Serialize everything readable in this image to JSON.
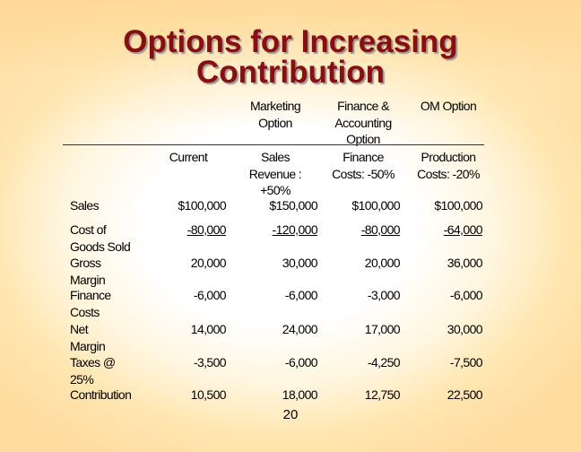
{
  "slide": {
    "title_line1": "Options for Increasing",
    "title_line2": "Contribution",
    "page_number": "20"
  },
  "table": {
    "top_headers": {
      "marketing": [
        "Marketing",
        "Option"
      ],
      "finance": [
        "Finance &",
        "Accounting",
        "Option"
      ],
      "om": [
        "OM Option"
      ]
    },
    "sub_headers": {
      "current": [
        "Current"
      ],
      "marketing": [
        "Sales",
        "Revenue :",
        "+50%"
      ],
      "finance": [
        "Finance",
        "Costs: -50%"
      ],
      "om": [
        "Production",
        "Costs: -20%"
      ]
    },
    "rows": [
      {
        "label": [
          "Sales"
        ],
        "current": "$100,000",
        "marketing": "$150,000",
        "finance": "$100,000",
        "om": "$100,000"
      },
      {
        "label": [
          "Cost of",
          "Goods Sold"
        ],
        "current": "-80,000",
        "marketing": "-120,000",
        "finance": "-80,000",
        "om": "-64,000"
      },
      {
        "label": [
          "Gross",
          "Margin"
        ],
        "current": "20,000",
        "marketing": "30,000",
        "finance": "20,000",
        "om": "36,000"
      },
      {
        "label": [
          "Finance",
          "Costs"
        ],
        "current": "-6,000",
        "marketing": "-6,000",
        "finance": "-3,000",
        "om": "-6,000"
      },
      {
        "label": [
          "Net",
          "Margin"
        ],
        "current": "14,000",
        "marketing": "24,000",
        "finance": "17,000",
        "om": "30,000"
      },
      {
        "label": [
          "Taxes @",
          "25%"
        ],
        "current": "-3,500",
        "marketing": "-6,000",
        "finance": "-4,250",
        "om": "-7,500"
      },
      {
        "label": [
          "Contribution"
        ],
        "current": "10,500",
        "marketing": "18,000",
        "finance": "12,750",
        "om": "22,500"
      }
    ]
  }
}
